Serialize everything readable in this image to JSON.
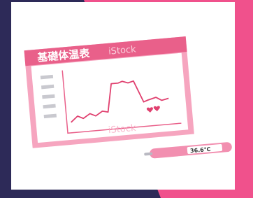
{
  "illustration": {
    "title": "基礎体温表",
    "watermark": "iStock",
    "thermometer_reading": "36.6℃"
  }
}
